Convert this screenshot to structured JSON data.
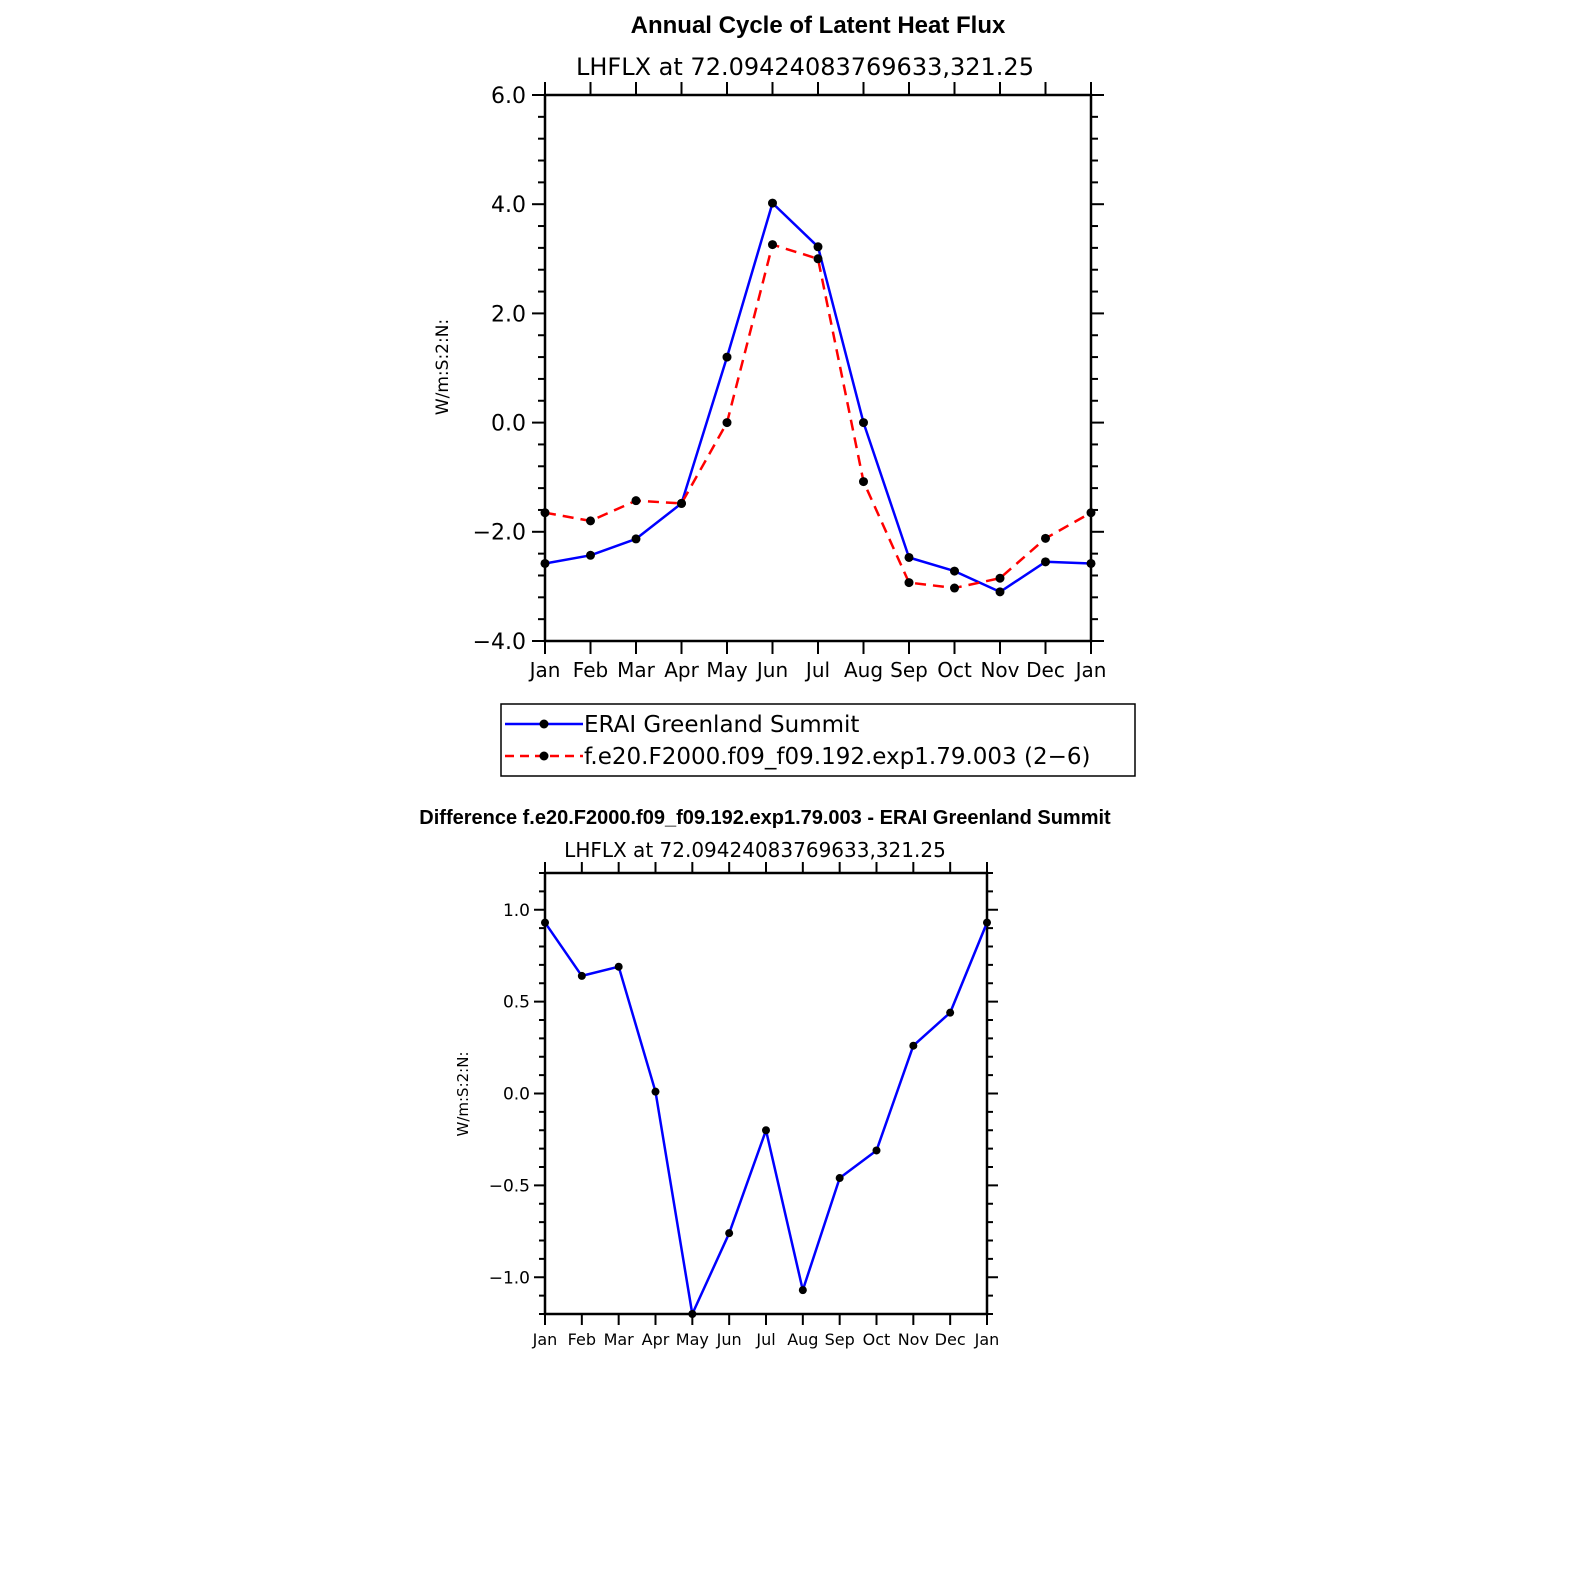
{
  "colors": {
    "obs": "#0000ff",
    "model": "#ff0000",
    "marker": "#000000",
    "axis": "#000000"
  },
  "chart_data": [
    {
      "type": "line",
      "title": "Annual Cycle of Latent Heat Flux",
      "subtitle": "LHFLX at 72.09424083769633,321.25",
      "ylabel": "W/m:S:2:N:",
      "xlabel": "",
      "ylim": [
        -4.0,
        6.0
      ],
      "y_ticks": [
        -4.0,
        -2.0,
        0.0,
        2.0,
        4.0,
        6.0
      ],
      "y_tick_labels": [
        "−4.0",
        "−2.0",
        "0.0",
        "2.0",
        "4.0",
        "6.0"
      ],
      "categories": [
        "Jan",
        "Feb",
        "Mar",
        "Apr",
        "May",
        "Jun",
        "Jul",
        "Aug",
        "Sep",
        "Oct",
        "Nov",
        "Dec",
        "Jan"
      ],
      "grid": false,
      "legend_position": "bottom",
      "series": [
        {
          "name": "ERAI Greenland Summit",
          "style": "solid",
          "color_key": "obs",
          "values": [
            -2.58,
            -2.43,
            -2.13,
            -1.48,
            1.2,
            4.02,
            3.22,
            0.0,
            -2.47,
            -2.72,
            -3.1,
            -2.55,
            -2.58
          ]
        },
        {
          "name": "f.e20.F2000.f09_f09.192.exp1.79.003 (2−6)",
          "style": "dashed",
          "color_key": "model",
          "values": [
            -1.65,
            -1.8,
            -1.43,
            -1.48,
            0.0,
            3.26,
            3.0,
            -1.08,
            -2.93,
            -3.03,
            -2.85,
            -2.12,
            -1.65
          ]
        }
      ]
    },
    {
      "type": "line",
      "title": "Difference f.e20.F2000.f09_f09.192.exp1.79.003 - ERAI Greenland Summit",
      "subtitle": "LHFLX at 72.09424083769633,321.25",
      "ylabel": "W/m:S:2:N:",
      "xlabel": "",
      "ylim": [
        -1.2,
        1.2
      ],
      "y_ticks": [
        -1.0,
        -0.5,
        0.0,
        0.5,
        1.0
      ],
      "y_tick_labels": [
        "−1.0",
        "−0.5",
        "0.0",
        "0.5",
        "1.0"
      ],
      "categories": [
        "Jan",
        "Feb",
        "Mar",
        "Apr",
        "May",
        "Jun",
        "Jul",
        "Aug",
        "Sep",
        "Oct",
        "Nov",
        "Dec",
        "Jan"
      ],
      "grid": false,
      "series": [
        {
          "style": "solid",
          "color_key": "obs",
          "values": [
            0.93,
            0.64,
            0.69,
            0.01,
            -1.2,
            -0.76,
            -0.2,
            -1.07,
            -0.46,
            -0.31,
            0.26,
            0.44,
            0.93
          ]
        }
      ]
    }
  ]
}
